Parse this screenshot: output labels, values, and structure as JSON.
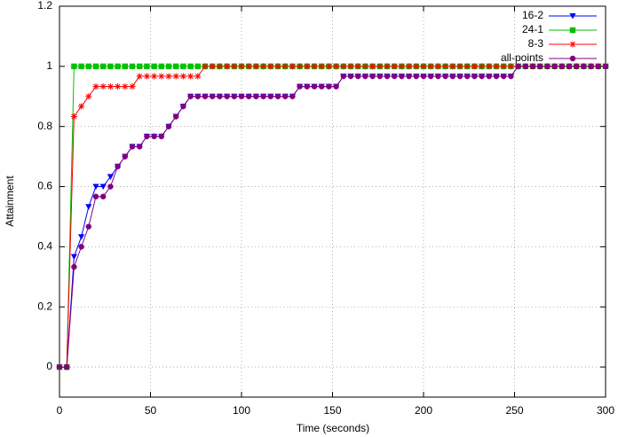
{
  "chart_data": {
    "type": "line",
    "x_label": "Time (seconds)",
    "y_label": "Attainment",
    "xlim": [
      0,
      300
    ],
    "ylim": [
      -0.1,
      1.2
    ],
    "xticks": [
      0,
      50,
      100,
      150,
      200,
      250,
      300
    ],
    "yticks": [
      0,
      0.2,
      0.4,
      0.6,
      0.8,
      1,
      1.2
    ],
    "grid": true,
    "legend": "top-right",
    "x": [
      0,
      4,
      8,
      12,
      16,
      20,
      24,
      28,
      32,
      36,
      40,
      44,
      48,
      52,
      56,
      60,
      64,
      68,
      72,
      76,
      80,
      84,
      88,
      92,
      96,
      100,
      104,
      108,
      112,
      116,
      120,
      124,
      128,
      132,
      136,
      140,
      144,
      148,
      152,
      156,
      160,
      164,
      168,
      172,
      176,
      180,
      184,
      188,
      192,
      196,
      200,
      204,
      208,
      212,
      216,
      220,
      224,
      228,
      232,
      236,
      240,
      244,
      248,
      252,
      256,
      260,
      264,
      268,
      272,
      276,
      280,
      284,
      288,
      292,
      296,
      300
    ],
    "series": [
      {
        "name": "16-2",
        "color": "#0000ff",
        "marker": "triangle-down",
        "values": [
          0,
          0,
          0.367,
          0.433,
          0.533,
          0.6,
          0.6,
          0.633,
          0.667,
          0.7,
          0.733,
          0.733,
          0.767,
          0.767,
          0.767,
          0.8,
          0.833,
          0.867,
          0.9,
          0.9,
          0.9,
          0.9,
          0.9,
          0.9,
          0.9,
          0.9,
          0.9,
          0.9,
          0.9,
          0.9,
          0.9,
          0.9,
          0.9,
          0.933,
          0.933,
          0.933,
          0.933,
          0.933,
          0.933,
          0.967,
          0.967,
          0.967,
          0.967,
          0.967,
          0.967,
          0.967,
          0.967,
          0.967,
          0.967,
          0.967,
          0.967,
          0.967,
          0.967,
          0.967,
          0.967,
          0.967,
          0.967,
          0.967,
          0.967,
          0.967,
          0.967,
          0.967,
          0.967,
          1,
          1,
          1,
          1,
          1,
          1,
          1,
          1,
          1,
          1,
          1,
          1,
          1
        ]
      },
      {
        "name": "24-1",
        "color": "#00c000",
        "marker": "square",
        "values": [
          0,
          0,
          1,
          1,
          1,
          1,
          1,
          1,
          1,
          1,
          1,
          1,
          1,
          1,
          1,
          1,
          1,
          1,
          1,
          1,
          1,
          1,
          1,
          1,
          1,
          1,
          1,
          1,
          1,
          1,
          1,
          1,
          1,
          1,
          1,
          1,
          1,
          1,
          1,
          1,
          1,
          1,
          1,
          1,
          1,
          1,
          1,
          1,
          1,
          1,
          1,
          1,
          1,
          1,
          1,
          1,
          1,
          1,
          1,
          1,
          1,
          1,
          1,
          1,
          1,
          1,
          1,
          1,
          1,
          1,
          1,
          1,
          1,
          1,
          1,
          1
        ]
      },
      {
        "name": "8-3",
        "color": "#ff0000",
        "marker": "asterisk",
        "values": [
          0,
          0,
          0.833,
          0.867,
          0.9,
          0.933,
          0.933,
          0.933,
          0.933,
          0.933,
          0.933,
          0.967,
          0.967,
          0.967,
          0.967,
          0.967,
          0.967,
          0.967,
          0.967,
          0.967,
          1,
          1,
          1,
          1,
          1,
          1,
          1,
          1,
          1,
          1,
          1,
          1,
          1,
          1,
          1,
          1,
          1,
          1,
          1,
          1,
          1,
          1,
          1,
          1,
          1,
          1,
          1,
          1,
          1,
          1,
          1,
          1,
          1,
          1,
          1,
          1,
          1,
          1,
          1,
          1,
          1,
          1,
          1,
          1,
          1,
          1,
          1,
          1,
          1,
          1,
          1,
          1,
          1,
          1,
          1,
          1
        ]
      },
      {
        "name": "all-points",
        "color": "#800080",
        "marker": "circle",
        "values": [
          0,
          0,
          0.333,
          0.4,
          0.467,
          0.567,
          0.567,
          0.6,
          0.667,
          0.7,
          0.733,
          0.733,
          0.767,
          0.767,
          0.767,
          0.8,
          0.833,
          0.867,
          0.9,
          0.9,
          0.9,
          0.9,
          0.9,
          0.9,
          0.9,
          0.9,
          0.9,
          0.9,
          0.9,
          0.9,
          0.9,
          0.9,
          0.9,
          0.933,
          0.933,
          0.933,
          0.933,
          0.933,
          0.933,
          0.967,
          0.967,
          0.967,
          0.967,
          0.967,
          0.967,
          0.967,
          0.967,
          0.967,
          0.967,
          0.967,
          0.967,
          0.967,
          0.967,
          0.967,
          0.967,
          0.967,
          0.967,
          0.967,
          0.967,
          0.967,
          0.967,
          0.967,
          0.967,
          1,
          1,
          1,
          1,
          1,
          1,
          1,
          1,
          1,
          1,
          1,
          1,
          1
        ]
      }
    ]
  }
}
